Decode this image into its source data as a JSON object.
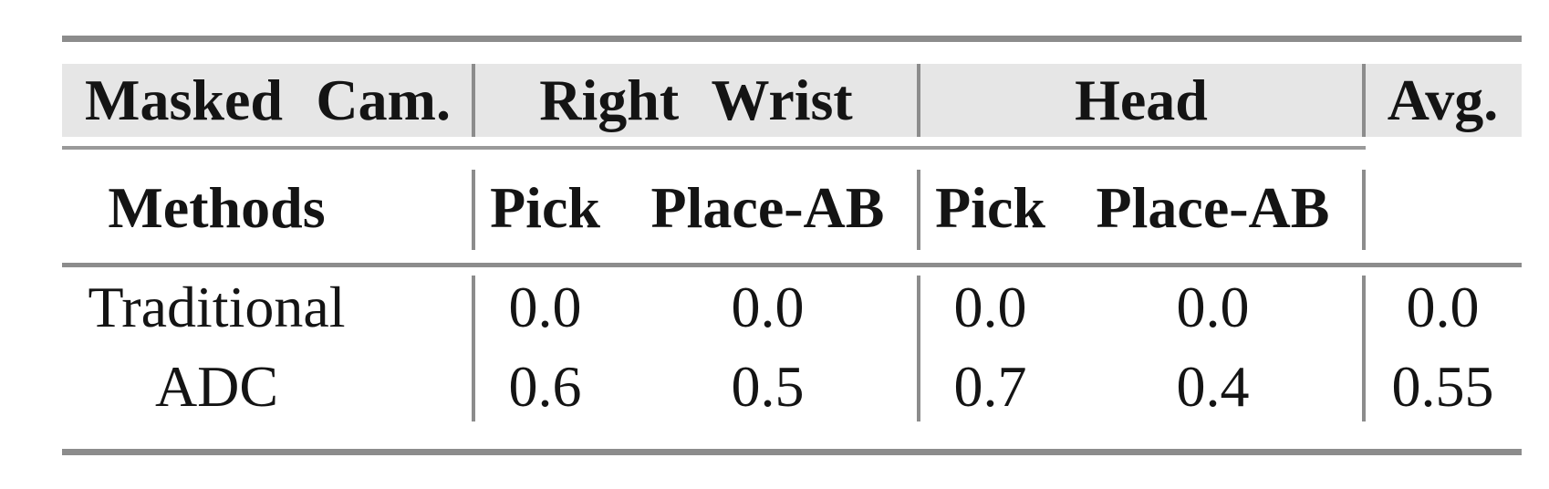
{
  "colors": {
    "band": "#e6e6e6",
    "rule": "#8c8c8c",
    "thin_rule": "#9a9a9a",
    "text": "#141414",
    "background": "#ffffff"
  },
  "table": {
    "top_header": {
      "masked_cam": "Masked Cam.",
      "right_wrist": "Right Wrist",
      "head": "Head",
      "avg": "Avg."
    },
    "sub_header": {
      "methods": "Methods",
      "rw_pick": "Pick",
      "rw_place_ab": "Place-AB",
      "head_pick": "Pick",
      "head_place_ab": "Place-AB"
    },
    "rows": [
      {
        "method": "Traditional",
        "rw_pick": "0.0",
        "rw_place_ab": "0.0",
        "head_pick": "0.0",
        "head_place_ab": "0.0",
        "avg": "0.0"
      },
      {
        "method": "ADC",
        "rw_pick": "0.6",
        "rw_place_ab": "0.5",
        "head_pick": "0.7",
        "head_place_ab": "0.4",
        "avg": "0.55"
      }
    ]
  }
}
